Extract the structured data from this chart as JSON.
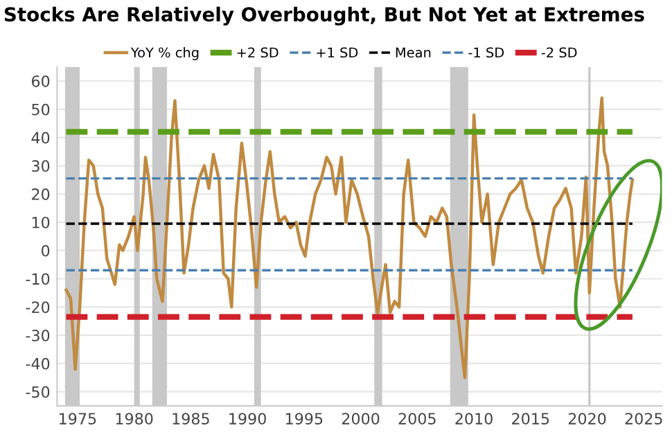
{
  "chart_data": {
    "type": "line",
    "title": "Stocks Are Relatively Overbought, But Not Yet at Extremes",
    "x": [
      1974.0,
      1974.4,
      1974.8,
      1975.2,
      1975.6,
      1976.0,
      1976.4,
      1976.8,
      1977.2,
      1977.6,
      1978.0,
      1978.3,
      1978.7,
      1979.0,
      1979.5,
      1980.0,
      1980.3,
      1980.8,
      1981.0,
      1981.3,
      1981.7,
      1982.0,
      1982.5,
      1982.9,
      1983.3,
      1983.6,
      1984.0,
      1984.4,
      1984.8,
      1985.2,
      1985.7,
      1986.2,
      1986.6,
      1987.0,
      1987.5,
      1987.9,
      1988.3,
      1988.6,
      1989.0,
      1989.5,
      1989.9,
      1990.3,
      1990.8,
      1991.2,
      1991.6,
      1992.0,
      1992.4,
      1992.8,
      1993.3,
      1993.8,
      1994.3,
      1994.7,
      1995.1,
      1995.5,
      1996.0,
      1996.5,
      1997.0,
      1997.4,
      1997.8,
      1998.3,
      1998.7,
      1999.2,
      1999.7,
      2000.2,
      2000.7,
      2001.1,
      2001.5,
      2001.9,
      2002.2,
      2002.6,
      2003.0,
      2003.4,
      2003.8,
      2004.2,
      2004.7,
      2005.2,
      2005.7,
      2006.2,
      2006.7,
      2007.2,
      2007.6,
      2008.0,
      2008.5,
      2009.0,
      2009.2,
      2009.6,
      2010.0,
      2010.3,
      2010.7,
      2011.2,
      2011.7,
      2012.2,
      2012.7,
      2013.2,
      2013.7,
      2014.2,
      2014.7,
      2015.2,
      2015.7,
      2016.1,
      2016.6,
      2017.1,
      2017.6,
      2018.1,
      2018.6,
      2019.0,
      2019.5,
      2019.9,
      2020.2,
      2020.6,
      2021.0,
      2021.3,
      2021.5,
      2021.8,
      2022.2,
      2022.5,
      2022.9,
      2023.2,
      2023.5,
      2023.8,
      2024.0
    ],
    "series": [
      {
        "name": "YoY % chg",
        "color": "#c08a40",
        "values": [
          -14,
          -17,
          -42,
          -20,
          10,
          32,
          30,
          20,
          15,
          -3,
          -8,
          -12,
          2,
          0,
          5,
          12,
          0,
          20,
          33,
          25,
          8,
          -10,
          -18,
          10,
          40,
          53,
          25,
          -8,
          2,
          15,
          25,
          30,
          22,
          34,
          25,
          -8,
          -10,
          -20,
          15,
          38,
          25,
          10,
          -13,
          10,
          24,
          35,
          20,
          10,
          12,
          8,
          10,
          2,
          -2,
          10,
          20,
          25,
          33,
          30,
          20,
          33,
          10,
          25,
          20,
          12,
          5,
          -10,
          -22,
          -12,
          -5,
          -22,
          -18,
          -20,
          20,
          32,
          10,
          8,
          5,
          12,
          10,
          15,
          12,
          -5,
          -20,
          -38,
          -45,
          -10,
          48,
          30,
          10,
          20,
          -5,
          10,
          15,
          20,
          22,
          25,
          15,
          10,
          -2,
          -8,
          5,
          15,
          18,
          22,
          15,
          -8,
          5,
          26,
          -15,
          15,
          40,
          54,
          35,
          30,
          10,
          -10,
          -20,
          -5,
          10,
          20,
          25
        ]
      }
    ],
    "xlim": [
      1973.2,
      2026.6
    ],
    "xticks": [
      1975,
      1980,
      1985,
      1990,
      1995,
      2000,
      2005,
      2010,
      2015,
      2020,
      2025
    ],
    "ylim": [
      -55,
      65
    ],
    "yticks": [
      -50,
      -40,
      -30,
      -20,
      -10,
      0,
      10,
      20,
      30,
      40,
      50,
      60
    ],
    "grid": "y",
    "legend": "top",
    "line_style": "solid",
    "marker": "none",
    "ref_lines": [
      {
        "axis": "y",
        "value": 42,
        "label": "+2 SD",
        "color": "#5a9e1a",
        "line_style": "dashed"
      },
      {
        "axis": "y",
        "value": 25.5,
        "label": "+1 SD",
        "color": "#4a7fb0",
        "line_style": "dashed"
      },
      {
        "axis": "y",
        "value": 9.5,
        "label": "Mean",
        "color": "#000000",
        "line_style": "dashed"
      },
      {
        "axis": "y",
        "value": -7,
        "label": "-1 SD",
        "color": "#4a7fb0",
        "line_style": "dashed"
      },
      {
        "axis": "y",
        "value": -23.5,
        "label": "-2 SD",
        "color": "#d0202a",
        "line_style": "dashed"
      }
    ],
    "bands": [
      {
        "axis": "x",
        "from": 1973.9,
        "to": 1975.2,
        "color": "#c8c8c8"
      },
      {
        "axis": "x",
        "from": 1980.0,
        "to": 1980.5,
        "color": "#c8c8c8"
      },
      {
        "axis": "x",
        "from": 1981.6,
        "to": 1982.9,
        "color": "#c8c8c8"
      },
      {
        "axis": "x",
        "from": 1990.6,
        "to": 1991.2,
        "color": "#c8c8c8"
      },
      {
        "axis": "x",
        "from": 2001.2,
        "to": 2001.9,
        "color": "#c8c8c8"
      },
      {
        "axis": "x",
        "from": 2007.9,
        "to": 2009.5,
        "color": "#c8c8c8"
      },
      {
        "axis": "x",
        "from": 2020.1,
        "to": 2020.3,
        "color": "#c8c8c8"
      }
    ]
  }
}
